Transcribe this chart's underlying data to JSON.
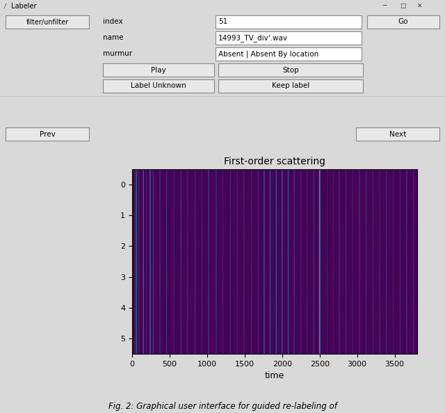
{
  "title": "First-order scattering",
  "xlabel": "time",
  "xlim": [
    0,
    3800
  ],
  "yticks": [
    0,
    1,
    2,
    3,
    4,
    5
  ],
  "xticks": [
    0,
    500,
    1000,
    1500,
    2000,
    2500,
    3000,
    3500
  ],
  "colormap": "viridis",
  "bg_color": "#d9d9d9",
  "plot_panel_bg": "#ffffff",
  "titlebar_bg": "#f0f0f0",
  "window_title": "Labeler",
  "ui": {
    "filter_btn": "filter/unfilter",
    "index_label": "index",
    "index_value": "51",
    "go_btn": "Go",
    "name_label": "name",
    "name_value": "14993_TV_div'.wav",
    "murmur_label": "murmur",
    "murmur_value": "Absent | Absent By location",
    "play_btn": "Play",
    "stop_btn": "Stop",
    "label_unknown_btn": "Label Unknown",
    "keep_label_btn": "Keep label",
    "prev_btn": "Prev",
    "next_btn": "Next"
  },
  "n_time": 3800,
  "n_freq": 6,
  "caption": "Fig. 2: Graphical user interface for guided re-labeling of"
}
